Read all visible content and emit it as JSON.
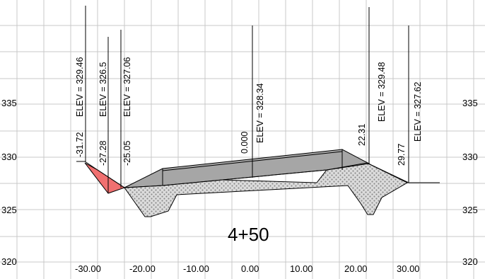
{
  "station_label": "4+50",
  "colors": {
    "background": "#ffffff",
    "grid": "#c8c8c8",
    "pavement": "#a9a9a9",
    "fill_hatch": "#d9d9d9",
    "cut_red": "#f07070",
    "line": "#000000"
  },
  "elevation_ticks": {
    "left": [
      "335",
      "330",
      "325",
      "320"
    ],
    "right": [
      "335",
      "330",
      "325",
      "320"
    ]
  },
  "offset_ticks": [
    "-30.00",
    "-20.00",
    "-10.00",
    "0.00",
    "10.00",
    "20.00",
    "30.00"
  ],
  "chart_data": {
    "type": "cross-section",
    "x_unit_values": [
      -30,
      -20,
      -10,
      0,
      10,
      20,
      30
    ],
    "y_unit_values": [
      320,
      325,
      330,
      335
    ],
    "annotations": [
      {
        "offset": "-31.72",
        "elev": "ELEV =  329.46"
      },
      {
        "offset": "-27.28",
        "elev": "ELEV =  326.5"
      },
      {
        "offset": "-25.05",
        "elev": "ELEV =  327.06"
      },
      {
        "offset": "0.000",
        "elev": "ELEV =  328.34"
      },
      {
        "offset": "22.31",
        "elev": "ELEV =  329.48"
      },
      {
        "offset": "29.77",
        "elev": "ELEV =  327.62"
      }
    ]
  }
}
